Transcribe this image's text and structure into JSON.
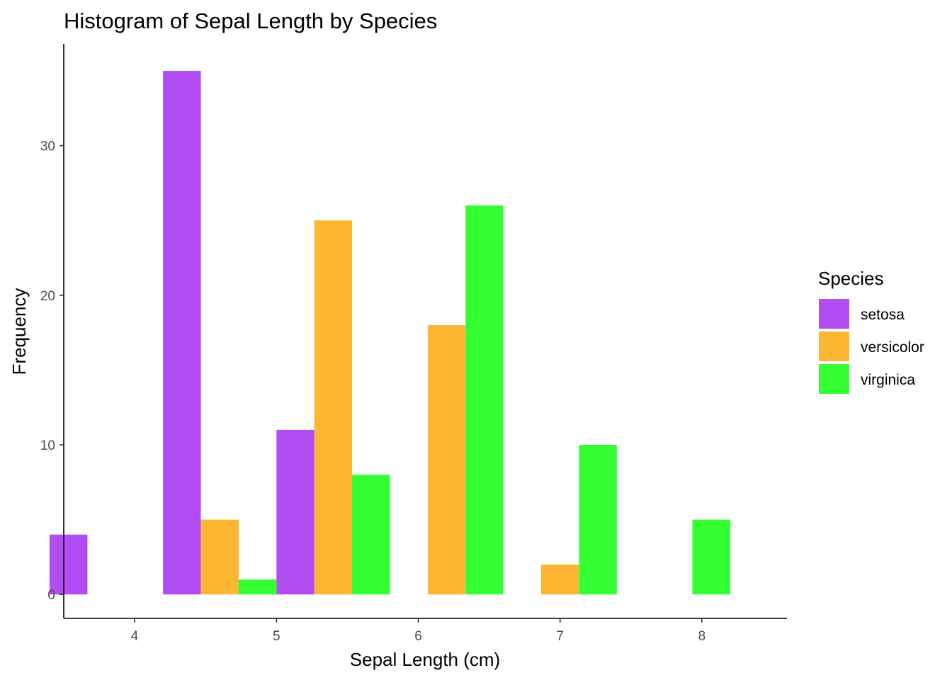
{
  "chart_data": {
    "type": "bar",
    "title": "Histogram of Sepal Length by Species",
    "xlabel": "Sepal Length (cm)",
    "ylabel": "Frequency",
    "xlim": [
      3.5,
      8.6
    ],
    "ylim": [
      -1.6,
      36.8
    ],
    "xticks": [
      4,
      5,
      6,
      7,
      8
    ],
    "yticks": [
      0,
      10,
      20,
      30
    ],
    "grid": false,
    "legend": {
      "title": "Species",
      "position": "right"
    },
    "bin_width": 0.8,
    "series": [
      {
        "name": "setosa",
        "color": "#b14df2",
        "bins": [
          {
            "x": 3.8,
            "value": 4
          },
          {
            "x": 4.6,
            "value": 35
          },
          {
            "x": 5.4,
            "value": 11
          }
        ]
      },
      {
        "name": "versicolor",
        "color": "#fdb632",
        "bins": [
          {
            "x": 4.6,
            "value": 5
          },
          {
            "x": 5.4,
            "value": 25
          },
          {
            "x": 6.2,
            "value": 18
          },
          {
            "x": 7.0,
            "value": 2
          }
        ]
      },
      {
        "name": "virginica",
        "color": "#33ff33",
        "bins": [
          {
            "x": 4.6,
            "value": 1
          },
          {
            "x": 5.4,
            "value": 8
          },
          {
            "x": 6.2,
            "value": 26
          },
          {
            "x": 7.0,
            "value": 10
          },
          {
            "x": 7.8,
            "value": 5
          }
        ]
      }
    ]
  }
}
